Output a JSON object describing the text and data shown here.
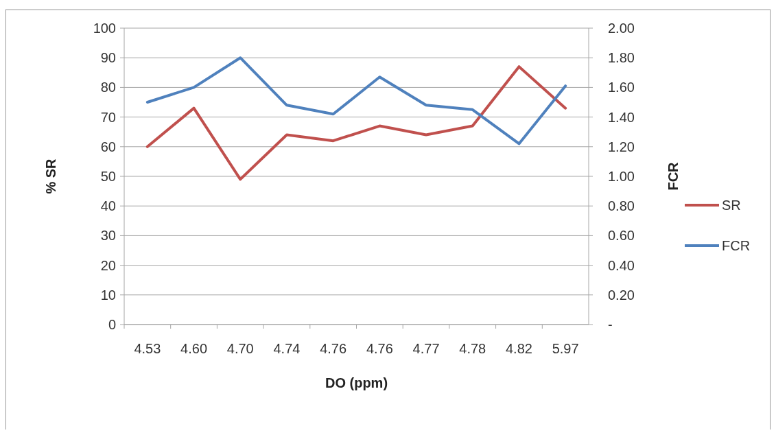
{
  "chart_data": {
    "type": "line",
    "xlabel": "DO (ppm)",
    "ylabel": "% SR",
    "y2label": "FCR",
    "categories": [
      "4.53",
      "4.60",
      "4.70",
      "4.74",
      "4.76",
      "4.76",
      "4.77",
      "4.78",
      "4.82",
      "5.97"
    ],
    "series": [
      {
        "name": "SR",
        "color": "#c0504d",
        "values": [
          60,
          73,
          49,
          64,
          62,
          67,
          64,
          67,
          87,
          73
        ]
      },
      {
        "name": "FCR",
        "color": "#4f81bd",
        "axis": "y2",
        "values": [
          1.5,
          1.6,
          1.8,
          1.48,
          1.42,
          1.67,
          1.48,
          1.45,
          1.22,
          1.61
        ]
      }
    ],
    "ylim": [
      0,
      100
    ],
    "yticks": [
      0,
      10,
      20,
      30,
      40,
      50,
      60,
      70,
      80,
      90,
      100
    ],
    "y2lim": [
      0,
      2
    ],
    "y2ticks": [
      {
        "value": 0,
        "label": "-"
      },
      {
        "value": 0.2,
        "label": "0.20"
      },
      {
        "value": 0.4,
        "label": "0.40"
      },
      {
        "value": 0.6,
        "label": "0.60"
      },
      {
        "value": 0.8,
        "label": "0.80"
      },
      {
        "value": 1,
        "label": "1.00"
      },
      {
        "value": 1.2,
        "label": "1.20"
      },
      {
        "value": 1.4,
        "label": "1.40"
      },
      {
        "value": 1.6,
        "label": "1.60"
      },
      {
        "value": 1.8,
        "label": "1.80"
      },
      {
        "value": 2,
        "label": "2.00"
      }
    ],
    "grid": "y",
    "legend": "right",
    "marker": "none",
    "line_style": "solid"
  }
}
